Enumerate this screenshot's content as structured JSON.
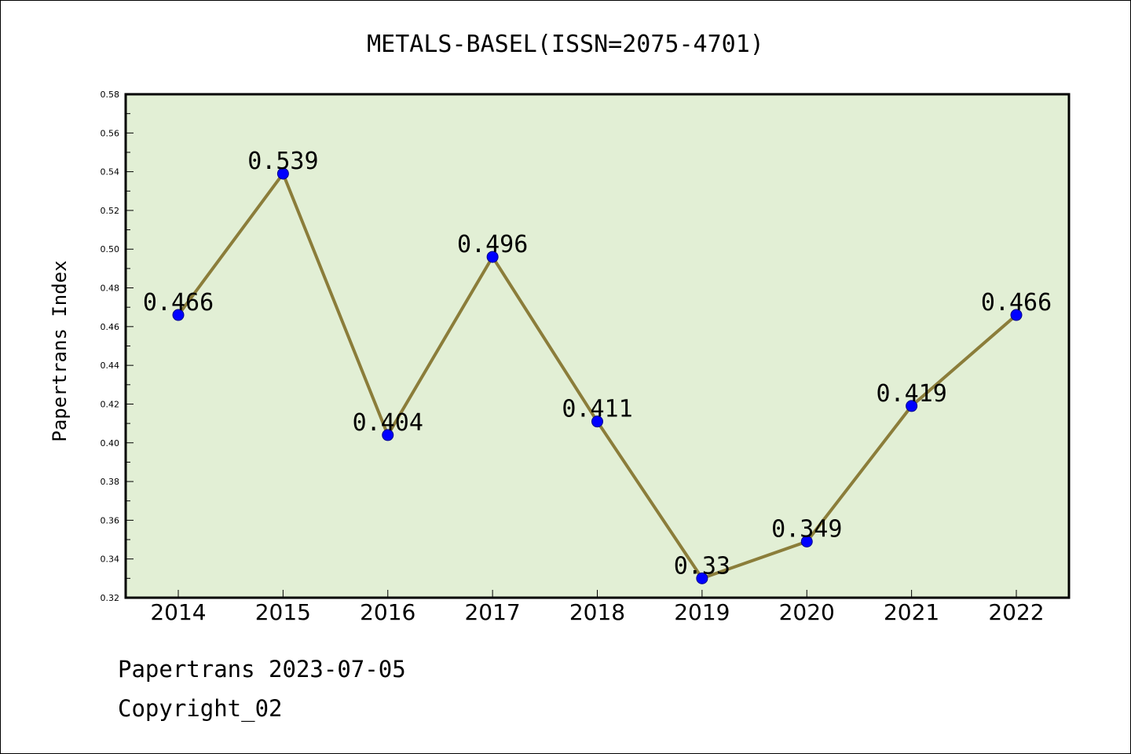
{
  "chart_data": {
    "type": "line",
    "title": "METALS-BASEL(ISSN=2075-4701)",
    "ylabel": "Papertrans Index",
    "xlabel": "",
    "categories": [
      "2014",
      "2015",
      "2016",
      "2017",
      "2018",
      "2019",
      "2020",
      "2021",
      "2022"
    ],
    "series": [
      {
        "values": [
          0.466,
          0.539,
          0.404,
          0.496,
          0.411,
          0.33,
          0.349,
          0.419,
          0.466
        ],
        "labels": [
          "0.466",
          "0.539",
          "0.404",
          "0.496",
          "0.411",
          "0.33",
          "0.349",
          "0.419",
          "0.466"
        ]
      }
    ],
    "ylim": [
      0.32,
      0.58
    ],
    "yticks": [
      "0.32",
      "0.34",
      "0.36",
      "0.38",
      "0.40",
      "0.42",
      "0.44",
      "0.46",
      "0.48",
      "0.50",
      "0.52",
      "0.54",
      "0.56",
      "0.58"
    ],
    "grid": false,
    "legend": "none",
    "colors": {
      "plot_background": "#e2efd5",
      "line": "#8b7d3a",
      "marker": "#0000ff",
      "axes": "#000000"
    }
  },
  "footer": {
    "line1": "Papertrans 2023-07-05",
    "line2": "Copyright_02"
  }
}
